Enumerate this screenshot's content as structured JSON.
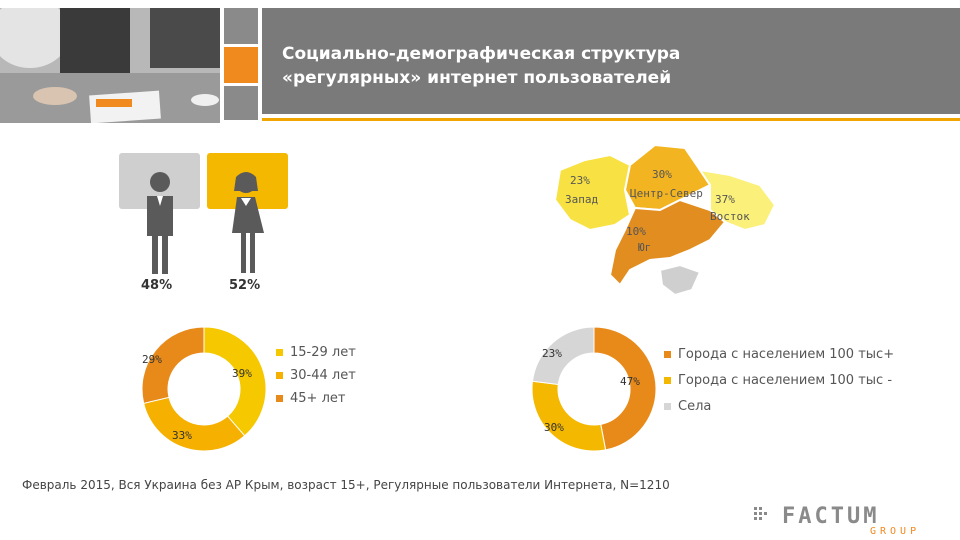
{
  "header": {
    "title": "Социально-демографическая структура\n«регулярных» интернет пользователей"
  },
  "gender": {
    "male_pct": "48%",
    "female_pct": "52%"
  },
  "map": {
    "regions": [
      {
        "pct": "23%",
        "name": "Запад",
        "color": "#f8e243"
      },
      {
        "pct": "30%",
        "name": "Центр-Север",
        "color": "#f3b421"
      },
      {
        "pct": "37%",
        "name": "Восток",
        "color": "#faf07a"
      },
      {
        "pct": "10%",
        "name": "Юг",
        "color": "#e28d20"
      }
    ]
  },
  "chart_data": [
    {
      "type": "pie",
      "labels": [
        "15-29 лет",
        "30-44 лет",
        "45+ лет"
      ],
      "values": [
        39,
        33,
        29
      ],
      "data_labels": [
        "39%",
        "33%",
        "29%"
      ],
      "colors": [
        "#f5c800",
        "#f5b000",
        "#e88a1a"
      ]
    },
    {
      "type": "pie",
      "labels": [
        "Города с населением 100 тыс+",
        "Города с населением 100 тыс -",
        "Села"
      ],
      "values": [
        47,
        30,
        23
      ],
      "data_labels": [
        "47%",
        "30%",
        "23%"
      ],
      "colors": [
        "#e88a1a",
        "#f5b800",
        "#d6d6d6"
      ]
    }
  ],
  "footnote": "Февраль 2015, Вся Украина без АР Крым, возраст 15+, Регулярные пользователи Интернета, N=1210",
  "logo": {
    "main": "FACTUM",
    "sub": "GROUP"
  }
}
